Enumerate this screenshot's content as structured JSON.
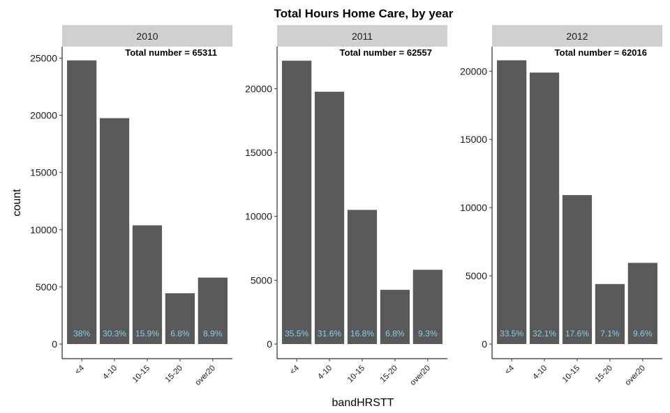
{
  "chart_data": {
    "type": "bar",
    "title": "Total Hours Home Care, by year",
    "xlabel": "bandHRSTT",
    "ylabel": "count",
    "categories": [
      "<4",
      "4-10",
      "10-15",
      "15-20",
      "over20"
    ],
    "bar_color": "#595959",
    "label_color": "#87CEEB",
    "strip_color": "#d0d0d0",
    "panels": [
      {
        "facet": "2010",
        "annotation": "Total number = 65311",
        "values": [
          24800,
          19750,
          10380,
          4440,
          5810
        ],
        "labels": [
          "38%",
          "30.3%",
          "15.9%",
          "6.8%",
          "8.9%"
        ],
        "ylim": [
          0,
          26000
        ],
        "yticks": [
          0,
          5000,
          10000,
          15000,
          20000,
          25000
        ],
        "yticklabels": [
          "0",
          "5000",
          "10000",
          "15000",
          "20000",
          "25000"
        ]
      },
      {
        "facet": "2011",
        "annotation": "Total number = 62557",
        "values": [
          22200,
          19770,
          10510,
          4250,
          5820
        ],
        "labels": [
          "35.5%",
          "31.6%",
          "16.8%",
          "6.8%",
          "9.3%"
        ],
        "ylim": [
          0,
          23300
        ],
        "yticks": [
          0,
          5000,
          10000,
          15000,
          20000
        ],
        "yticklabels": [
          "0",
          "5000",
          "10000",
          "15000",
          "20000"
        ]
      },
      {
        "facet": "2012",
        "annotation": "Total number = 62016",
        "values": [
          20800,
          19900,
          10920,
          4400,
          5950
        ],
        "labels": [
          "33.5%",
          "32.1%",
          "17.6%",
          "7.1%",
          "9.6%"
        ],
        "ylim": [
          0,
          21800
        ],
        "yticks": [
          0,
          5000,
          10000,
          15000,
          20000
        ],
        "yticklabels": [
          "0",
          "5000",
          "10000",
          "15000",
          "20000"
        ]
      }
    ]
  }
}
